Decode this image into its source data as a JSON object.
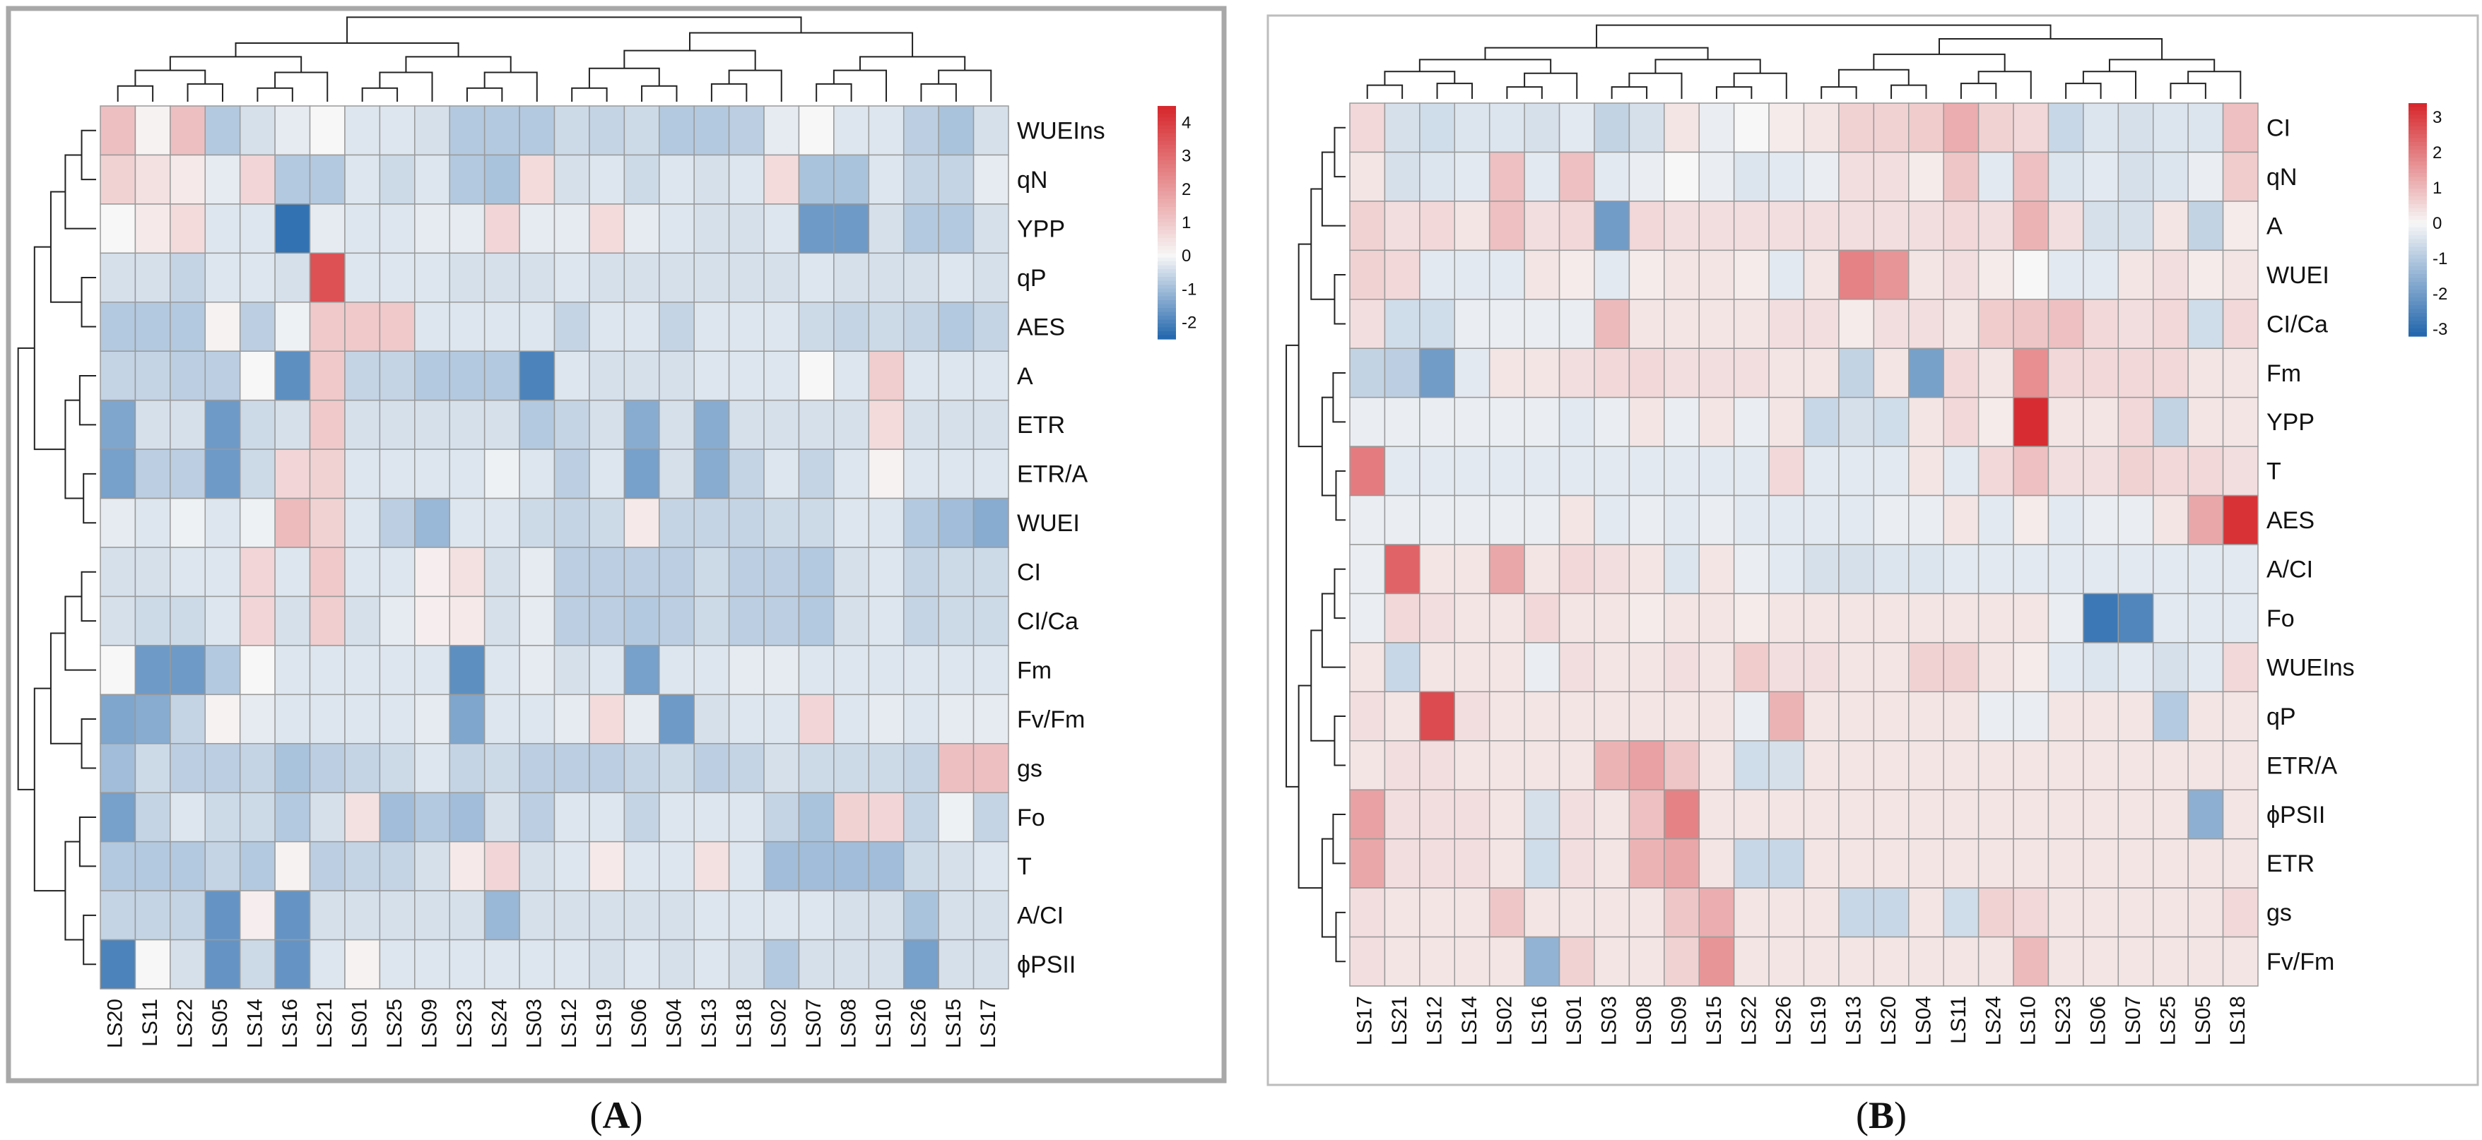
{
  "panels": {
    "A": {
      "label": "A"
    },
    "B": {
      "label": "B"
    }
  },
  "colorscale": {
    "low": "#2166ac",
    "mid": "#f7f7f7",
    "high": "#d6262b"
  },
  "chart_data": [
    {
      "type": "heatmap",
      "panel": "A",
      "rows": [
        "WUEIns",
        "qN",
        "YPP",
        "qP",
        "AES",
        "A",
        "ETR",
        "ETR/A",
        "WUEI",
        "CI",
        "CI/Ca",
        "Fm",
        "Fv/Fm",
        "gs",
        "Fo",
        "T",
        "A/CI",
        "ϕPSII"
      ],
      "columns": [
        "LS20",
        "LS11",
        "LS22",
        "LS05",
        "LS14",
        "LS16",
        "LS21",
        "LS01",
        "LS25",
        "LS09",
        "LS23",
        "LS24",
        "LS03",
        "LS12",
        "LS19",
        "LS06",
        "LS04",
        "LS13",
        "LS18",
        "LS02",
        "LS07",
        "LS08",
        "LS10",
        "LS26",
        "LS15",
        "LS17"
      ],
      "values": [
        [
          1.2,
          0.1,
          1.2,
          -0.8,
          -0.4,
          -0.2,
          0.0,
          -0.3,
          -0.3,
          -0.4,
          -0.8,
          -0.8,
          -0.8,
          -0.5,
          -0.6,
          -0.5,
          -0.8,
          -0.8,
          -0.7,
          -0.2,
          0.0,
          -0.3,
          -0.3,
          -0.7,
          -0.9,
          -0.4
        ],
        [
          0.8,
          0.5,
          0.3,
          -0.2,
          0.7,
          -0.8,
          -0.8,
          -0.3,
          -0.5,
          -0.3,
          -0.8,
          -0.9,
          0.6,
          -0.4,
          -0.3,
          -0.5,
          -0.3,
          -0.4,
          -0.3,
          0.6,
          -0.9,
          -0.9,
          -0.3,
          -0.6,
          -0.6,
          -0.2
        ],
        [
          0.0,
          0.3,
          0.6,
          -0.3,
          -0.3,
          -2.3,
          -0.2,
          -0.3,
          -0.3,
          -0.2,
          -0.2,
          0.7,
          -0.2,
          -0.2,
          0.6,
          -0.2,
          -0.3,
          -0.4,
          -0.4,
          -0.3,
          -1.6,
          -1.6,
          -0.4,
          -0.8,
          -0.8,
          -0.4
        ],
        [
          -0.4,
          -0.4,
          -0.6,
          -0.3,
          -0.3,
          -0.4,
          3.6,
          -0.3,
          -0.3,
          -0.3,
          -0.4,
          -0.4,
          -0.4,
          -0.3,
          -0.4,
          -0.4,
          -0.4,
          -0.4,
          -0.4,
          -0.4,
          -0.3,
          -0.4,
          -0.4,
          -0.4,
          -0.3,
          -0.4
        ],
        [
          -0.8,
          -0.8,
          -0.8,
          0.1,
          -0.7,
          -0.1,
          1.0,
          1.0,
          1.0,
          -0.3,
          -0.3,
          -0.3,
          -0.3,
          -0.6,
          -0.3,
          -0.3,
          -0.6,
          -0.3,
          -0.3,
          -0.3,
          -0.5,
          -0.6,
          -0.5,
          -0.6,
          -0.8,
          -0.6
        ],
        [
          -0.6,
          -0.6,
          -0.7,
          -0.7,
          0.0,
          -1.8,
          1.0,
          -0.6,
          -0.6,
          -0.8,
          -0.8,
          -0.8,
          -2.0,
          -0.3,
          -0.4,
          -0.4,
          -0.4,
          -0.3,
          -0.3,
          -0.3,
          0.0,
          -0.3,
          0.9,
          -0.3,
          -0.3,
          -0.3
        ],
        [
          -1.4,
          -0.4,
          -0.4,
          -1.6,
          -0.5,
          -0.4,
          1.0,
          -0.4,
          -0.4,
          -0.4,
          -0.4,
          -0.4,
          -0.8,
          -0.6,
          -0.4,
          -1.3,
          -0.4,
          -1.3,
          -0.4,
          -0.4,
          -0.4,
          -0.4,
          0.6,
          -0.4,
          -0.4,
          -0.4
        ],
        [
          -1.5,
          -0.7,
          -0.7,
          -1.6,
          -0.5,
          0.7,
          0.8,
          -0.3,
          -0.3,
          -0.3,
          -0.3,
          -0.1,
          -0.3,
          -0.7,
          -0.3,
          -1.5,
          -0.4,
          -1.3,
          -0.6,
          -0.3,
          -0.6,
          -0.3,
          0.1,
          -0.3,
          -0.3,
          -0.3
        ],
        [
          -0.2,
          -0.3,
          -0.1,
          -0.3,
          -0.1,
          1.3,
          0.8,
          -0.3,
          -0.7,
          -1.1,
          -0.3,
          -0.3,
          -0.5,
          -0.6,
          -0.5,
          0.3,
          -0.6,
          -0.6,
          -0.6,
          -0.5,
          -0.5,
          -0.3,
          -0.3,
          -0.8,
          -1.0,
          -1.3
        ],
        [
          -0.4,
          -0.4,
          -0.3,
          -0.3,
          0.7,
          -0.3,
          1.0,
          -0.3,
          -0.3,
          0.2,
          0.5,
          -0.4,
          -0.2,
          -0.7,
          -0.7,
          -0.7,
          -0.7,
          -0.5,
          -0.7,
          -0.7,
          -0.8,
          -0.4,
          -0.3,
          -0.6,
          -0.5,
          -0.5
        ],
        [
          -0.4,
          -0.5,
          -0.5,
          -0.3,
          0.7,
          -0.4,
          0.9,
          -0.4,
          -0.2,
          0.2,
          0.3,
          -0.4,
          -0.2,
          -0.7,
          -0.7,
          -0.8,
          -0.7,
          -0.5,
          -0.7,
          -0.7,
          -0.8,
          -0.4,
          -0.3,
          -0.6,
          -0.5,
          -0.5
        ],
        [
          0.0,
          -1.6,
          -1.6,
          -0.8,
          0.0,
          -0.3,
          -0.3,
          -0.3,
          -0.3,
          -0.3,
          -1.8,
          -0.3,
          -0.2,
          -0.4,
          -0.3,
          -1.5,
          -0.3,
          -0.3,
          -0.2,
          -0.2,
          -0.3,
          -0.3,
          -0.3,
          -0.3,
          -0.3,
          -0.3
        ],
        [
          -1.4,
          -1.3,
          -0.6,
          0.1,
          -0.2,
          -0.3,
          -0.3,
          -0.3,
          -0.3,
          -0.2,
          -1.4,
          -0.3,
          -0.3,
          -0.2,
          0.6,
          -0.2,
          -1.6,
          -0.4,
          -0.3,
          -0.3,
          0.7,
          -0.3,
          -0.2,
          -0.3,
          -0.2,
          -0.2
        ],
        [
          -1.0,
          -0.5,
          -0.7,
          -0.7,
          -0.6,
          -0.9,
          -0.7,
          -0.6,
          -0.5,
          -0.3,
          -0.6,
          -0.5,
          -0.7,
          -0.7,
          -0.7,
          -0.6,
          -0.5,
          -0.7,
          -0.6,
          -0.4,
          -0.5,
          -0.5,
          -0.5,
          -0.6,
          1.2,
          1.2
        ],
        [
          -1.5,
          -0.6,
          -0.3,
          -0.5,
          -0.5,
          -0.8,
          -0.4,
          0.5,
          -1.0,
          -0.8,
          -1.0,
          -0.4,
          -0.7,
          -0.3,
          -0.3,
          -0.6,
          -0.3,
          -0.3,
          -0.3,
          -0.6,
          -0.9,
          0.8,
          0.7,
          -0.6,
          -0.1,
          -0.6
        ],
        [
          -0.8,
          -0.8,
          -0.8,
          -0.6,
          -0.8,
          0.1,
          -0.7,
          -0.6,
          -0.6,
          -0.4,
          0.3,
          0.7,
          -0.4,
          -0.3,
          0.3,
          -0.3,
          -0.3,
          0.5,
          -0.3,
          -1.0,
          -1.0,
          -1.0,
          -1.0,
          -0.5,
          -0.4,
          -0.3
        ],
        [
          -0.6,
          -0.6,
          -0.6,
          -1.7,
          0.2,
          -1.7,
          -0.4,
          -0.4,
          -0.4,
          -0.4,
          -0.4,
          -1.1,
          -0.4,
          -0.4,
          -0.4,
          -0.4,
          -0.4,
          -0.3,
          -0.3,
          -0.3,
          -0.3,
          -0.4,
          -0.4,
          -0.9,
          -0.4,
          -0.4
        ],
        [
          -2.0,
          0.0,
          -0.4,
          -1.7,
          -0.5,
          -1.7,
          -0.3,
          0.1,
          -0.3,
          -0.3,
          -0.3,
          -0.3,
          -0.3,
          -0.3,
          -0.4,
          -0.3,
          -0.4,
          -0.3,
          -0.4,
          -0.8,
          -0.4,
          -0.4,
          -0.4,
          -1.5,
          -0.4,
          -0.4
        ]
      ],
      "legend": {
        "ticks": [
          4,
          3,
          2,
          1,
          0,
          -1,
          -2
        ],
        "range": [
          -2.5,
          4.5
        ]
      }
    },
    {
      "type": "heatmap",
      "panel": "B",
      "rows": [
        "CI",
        "qN",
        "A",
        "WUEI",
        "CI/Ca",
        "Fm",
        "YPP",
        "T",
        "AES",
        "A/CI",
        "Fo",
        "WUEIns",
        "qP",
        "ETR/A",
        "ϕPSII",
        "ETR",
        "gs",
        "Fv/Fm"
      ],
      "columns": [
        "LS17",
        "LS21",
        "LS12",
        "LS14",
        "LS02",
        "LS16",
        "LS01",
        "LS03",
        "LS08",
        "LS09",
        "LS15",
        "LS22",
        "LS26",
        "LS19",
        "LS13",
        "LS20",
        "LS04",
        "LS11",
        "LS24",
        "LS10",
        "LS23",
        "LS06",
        "LS07",
        "LS25",
        "LS05",
        "LS18"
      ],
      "values": [
        [
          0.5,
          -0.5,
          -0.6,
          -0.4,
          -0.4,
          -0.5,
          -0.3,
          -0.8,
          -0.5,
          0.3,
          -0.2,
          0.0,
          0.2,
          0.3,
          0.6,
          0.6,
          0.7,
          1.2,
          0.6,
          0.5,
          -0.7,
          -0.4,
          -0.5,
          -0.4,
          -0.4,
          0.9
        ],
        [
          0.3,
          -0.5,
          -0.4,
          -0.3,
          0.9,
          -0.3,
          0.9,
          -0.3,
          -0.2,
          0.0,
          -0.2,
          -0.4,
          -0.3,
          -0.2,
          0.4,
          0.4,
          0.2,
          0.8,
          -0.3,
          0.9,
          -0.4,
          -0.3,
          -0.5,
          -0.4,
          -0.2,
          0.7
        ],
        [
          0.6,
          0.4,
          0.5,
          0.3,
          0.9,
          0.4,
          0.5,
          -2.0,
          0.5,
          0.4,
          0.4,
          0.4,
          0.4,
          0.4,
          0.4,
          0.4,
          0.4,
          0.5,
          0.4,
          1.1,
          0.4,
          -0.5,
          -0.5,
          0.3,
          -0.8,
          0.2
        ],
        [
          0.6,
          0.5,
          -0.3,
          -0.3,
          -0.3,
          0.3,
          0.2,
          -0.3,
          0.2,
          0.3,
          0.3,
          0.2,
          -0.3,
          0.3,
          1.9,
          1.6,
          0.3,
          0.4,
          0.2,
          0.0,
          -0.3,
          -0.3,
          0.3,
          0.4,
          0.2,
          0.3
        ],
        [
          0.4,
          -0.6,
          -0.6,
          -0.2,
          -0.2,
          -0.2,
          -0.2,
          1.0,
          0.3,
          0.3,
          0.3,
          0.3,
          0.4,
          0.4,
          0.2,
          0.4,
          0.4,
          0.3,
          0.7,
          0.8,
          0.9,
          0.5,
          0.4,
          0.5,
          -0.6,
          0.5
        ],
        [
          -0.8,
          -0.9,
          -2.0,
          -0.3,
          0.3,
          0.3,
          0.4,
          0.5,
          0.5,
          0.4,
          0.4,
          0.4,
          0.3,
          0.3,
          -0.8,
          0.3,
          -1.9,
          0.5,
          0.3,
          1.7,
          0.5,
          0.5,
          0.5,
          0.5,
          0.3,
          0.3
        ],
        [
          -0.2,
          -0.2,
          -0.2,
          -0.2,
          -0.2,
          -0.2,
          -0.3,
          -0.2,
          0.3,
          -0.2,
          0.3,
          -0.2,
          0.3,
          -0.7,
          -0.5,
          -0.6,
          0.3,
          0.5,
          0.2,
          3.3,
          0.3,
          0.3,
          0.5,
          -0.8,
          0.3,
          0.3
        ],
        [
          2.0,
          -0.3,
          -0.3,
          -0.3,
          -0.3,
          -0.3,
          -0.3,
          -0.3,
          -0.3,
          -0.3,
          -0.3,
          -0.3,
          0.5,
          -0.3,
          -0.3,
          -0.3,
          0.3,
          -0.3,
          0.5,
          0.9,
          0.4,
          0.4,
          0.6,
          0.5,
          0.5,
          0.4
        ],
        [
          -0.2,
          -0.2,
          -0.2,
          -0.2,
          -0.2,
          -0.2,
          0.3,
          -0.3,
          -0.2,
          -0.3,
          -0.2,
          -0.3,
          -0.3,
          -0.3,
          -0.3,
          -0.2,
          -0.2,
          0.3,
          -0.3,
          0.2,
          -0.3,
          -0.2,
          -0.2,
          0.3,
          1.3,
          3.2
        ],
        [
          -0.2,
          2.4,
          0.3,
          0.3,
          1.3,
          0.3,
          0.5,
          0.4,
          0.3,
          -0.4,
          0.3,
          -0.2,
          -0.3,
          -0.5,
          -0.5,
          -0.4,
          -0.4,
          -0.3,
          -0.3,
          -0.3,
          -0.3,
          -0.3,
          -0.3,
          -0.3,
          -0.3,
          -0.3
        ],
        [
          -0.2,
          0.5,
          0.4,
          0.3,
          0.3,
          0.5,
          0.3,
          0.3,
          0.2,
          0.3,
          0.3,
          0.2,
          0.3,
          0.3,
          0.3,
          0.3,
          0.3,
          0.3,
          0.3,
          0.3,
          -0.2,
          -2.8,
          -2.5,
          -0.3,
          -0.3,
          -0.3
        ],
        [
          0.3,
          -0.7,
          0.3,
          0.3,
          0.3,
          -0.2,
          0.4,
          0.3,
          0.3,
          0.4,
          0.3,
          0.7,
          0.4,
          0.4,
          0.3,
          0.3,
          0.6,
          0.6,
          0.3,
          0.2,
          -0.3,
          -0.4,
          -0.3,
          -0.5,
          -0.3,
          0.5
        ],
        [
          0.4,
          0.3,
          2.8,
          0.4,
          0.3,
          0.3,
          0.3,
          0.3,
          0.3,
          0.3,
          0.3,
          -0.2,
          1.1,
          0.3,
          0.3,
          0.3,
          0.3,
          0.3,
          -0.2,
          -0.2,
          0.3,
          0.3,
          0.3,
          -1.0,
          0.3,
          0.3
        ],
        [
          0.3,
          0.4,
          0.4,
          0.3,
          0.3,
          0.3,
          0.3,
          1.1,
          1.4,
          0.8,
          0.3,
          -0.6,
          -0.5,
          0.3,
          0.3,
          0.3,
          0.3,
          0.3,
          0.3,
          0.3,
          0.3,
          0.3,
          0.3,
          0.3,
          0.3,
          0.3
        ],
        [
          1.4,
          0.4,
          0.4,
          0.4,
          0.3,
          -0.5,
          0.4,
          0.3,
          0.9,
          1.9,
          0.3,
          0.3,
          0.3,
          0.3,
          0.3,
          0.3,
          0.3,
          0.3,
          0.3,
          0.3,
          0.3,
          0.3,
          0.3,
          0.3,
          -1.6,
          0.3
        ],
        [
          1.3,
          0.4,
          0.4,
          0.4,
          0.3,
          -0.6,
          0.4,
          0.3,
          1.1,
          1.3,
          0.3,
          -0.7,
          -0.7,
          0.3,
          0.3,
          0.3,
          0.3,
          0.3,
          0.3,
          0.3,
          0.3,
          0.3,
          0.3,
          0.3,
          0.3,
          0.3
        ],
        [
          0.4,
          0.3,
          0.3,
          0.3,
          0.8,
          0.3,
          0.3,
          0.3,
          0.3,
          0.8,
          1.2,
          0.3,
          0.3,
          0.3,
          -0.7,
          -0.7,
          0.3,
          -0.6,
          0.6,
          0.5,
          0.3,
          0.3,
          0.3,
          0.3,
          0.3,
          0.5
        ],
        [
          0.4,
          0.3,
          0.3,
          0.3,
          0.3,
          -1.5,
          0.6,
          0.3,
          0.3,
          0.6,
          1.6,
          0.3,
          0.3,
          0.3,
          0.3,
          0.3,
          0.3,
          0.3,
          0.3,
          1.0,
          0.3,
          0.3,
          0.3,
          0.3,
          0.3,
          0.3
        ]
      ],
      "legend": {
        "ticks": [
          3,
          2,
          1,
          0,
          -1,
          -2,
          -3
        ],
        "range": [
          -3.2,
          3.4
        ]
      }
    }
  ]
}
